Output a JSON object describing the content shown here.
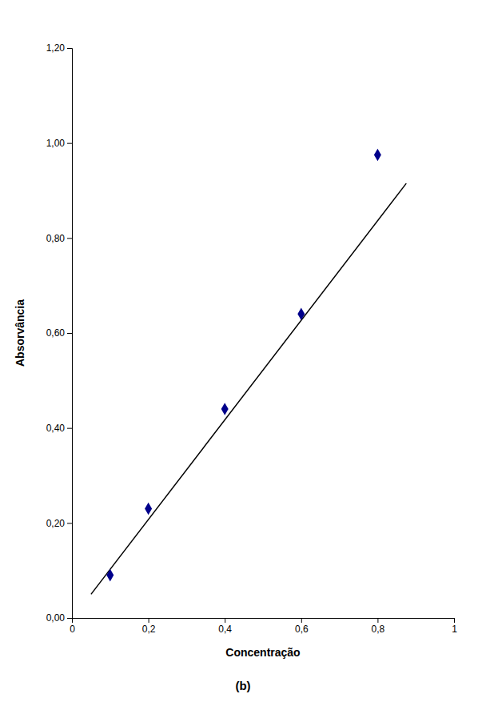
{
  "chart_data": {
    "type": "scatter",
    "title": "(b)",
    "xlabel": "Concentração",
    "ylabel": "Absorvância",
    "xlim": [
      0,
      1.0
    ],
    "ylim": [
      0.0,
      1.2
    ],
    "xticks": [
      0,
      {
        "value": 0.2,
        "label": "0,2"
      },
      {
        "value": 0.4,
        "label": "0,4"
      },
      {
        "value": 0.6,
        "label": "0,6"
      },
      {
        "value": 0.8,
        "label": "0,8"
      },
      1
    ],
    "yticks": [
      {
        "value": 0.0,
        "label": "0,00"
      },
      {
        "value": 0.2,
        "label": "0,20"
      },
      {
        "value": 0.4,
        "label": "0,40"
      },
      {
        "value": 0.6,
        "label": "0,60"
      },
      {
        "value": 0.8,
        "label": "0,80"
      },
      {
        "value": 1.0,
        "label": "1,00"
      },
      {
        "value": 1.2,
        "label": "1,20"
      }
    ],
    "grid": false,
    "series": [
      {
        "type": "line",
        "color": "#000000",
        "line_style": "solid",
        "x": [
          0.05,
          0.875
        ],
        "values": [
          0.05,
          0.915
        ]
      },
      {
        "type": "scatter",
        "color": "#00008B",
        "marker": "diamond",
        "x": [
          0.1,
          0.2,
          0.4,
          0.6,
          0.8
        ],
        "values": [
          0.09,
          0.23,
          0.44,
          0.64,
          0.975
        ]
      }
    ]
  }
}
